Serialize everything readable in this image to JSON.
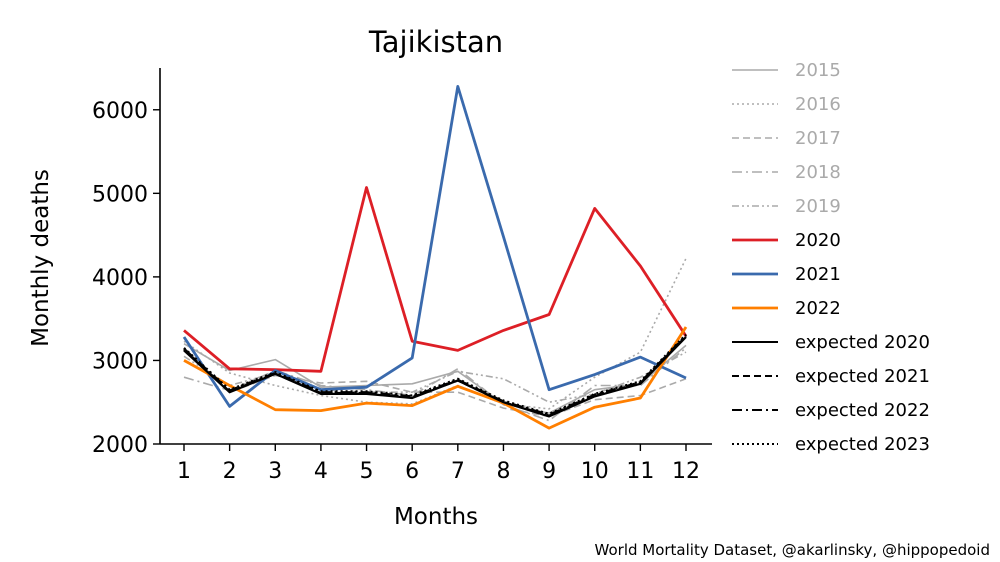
{
  "chart_data": {
    "type": "line",
    "title": "Tajikistan",
    "xlabel": "Months",
    "ylabel": "Monthly deaths",
    "x": [
      1,
      2,
      3,
      4,
      5,
      6,
      7,
      8,
      9,
      10,
      11,
      12
    ],
    "ylim": [
      2000,
      6500
    ],
    "yticks": [
      2000,
      3000,
      4000,
      5000,
      6000
    ],
    "grid": false,
    "legend_position": "outside-right",
    "series": [
      {
        "name": "2015",
        "color": "#aaaaaa",
        "dash": "solid",
        "values": [
          3200,
          2880,
          3010,
          2680,
          2700,
          2720,
          2870,
          2480,
          2370,
          2650,
          2720,
          3180
        ]
      },
      {
        "name": "2016",
        "color": "#aaaaaa",
        "dash": "dotted",
        "values": [
          3230,
          2850,
          2700,
          2580,
          2500,
          2480,
          2700,
          2480,
          2420,
          2800,
          3100,
          4220
        ]
      },
      {
        "name": "2017",
        "color": "#aaaaaa",
        "dash": "dashed",
        "values": [
          3150,
          2620,
          2820,
          2730,
          2750,
          2620,
          2620,
          2430,
          2330,
          2530,
          2580,
          2780
        ]
      },
      {
        "name": "2018",
        "color": "#aaaaaa",
        "dash": "dashdot",
        "values": [
          2800,
          2640,
          2880,
          2700,
          2650,
          2580,
          2900,
          2470,
          2280,
          2700,
          2700,
          3150
        ]
      },
      {
        "name": "2019",
        "color": "#aaaaaa",
        "dash": "dashdotdot",
        "values": [
          3050,
          2700,
          2850,
          2650,
          2620,
          2620,
          2870,
          2780,
          2500,
          2600,
          2800,
          3100
        ]
      },
      {
        "name": "2020",
        "color": "#dd1f26",
        "dash": "solid",
        "values": [
          3360,
          2900,
          2890,
          2870,
          5070,
          3230,
          3120,
          3360,
          3550,
          4820,
          4130,
          3290
        ]
      },
      {
        "name": "2021",
        "color": "#3a6aad",
        "dash": "solid",
        "values": [
          3280,
          2450,
          2880,
          2650,
          2680,
          3030,
          6280,
          4480,
          2650,
          2830,
          3040,
          2790
        ]
      },
      {
        "name": "2022",
        "color": "#ff7f00",
        "dash": "solid",
        "values": [
          3000,
          2700,
          2410,
          2400,
          2490,
          2460,
          2690,
          2490,
          2190,
          2440,
          2550,
          3400
        ]
      },
      {
        "name": "expected 2020",
        "color": "#000000",
        "dash": "solid",
        "values": [
          3120,
          2620,
          2840,
          2600,
          2600,
          2550,
          2760,
          2500,
          2330,
          2570,
          2720,
          3280
        ]
      },
      {
        "name": "expected 2021",
        "color": "#000000",
        "dash": "dashed",
        "values": [
          3130,
          2630,
          2840,
          2610,
          2610,
          2560,
          2760,
          2500,
          2340,
          2580,
          2730,
          3290
        ]
      },
      {
        "name": "expected 2022",
        "color": "#000000",
        "dash": "dashdot",
        "values": [
          3140,
          2640,
          2850,
          2620,
          2620,
          2570,
          2770,
          2510,
          2350,
          2590,
          2740,
          3300
        ]
      },
      {
        "name": "expected 2023",
        "color": "#000000",
        "dash": "dotted",
        "values": [
          3150,
          2650,
          2860,
          2630,
          2630,
          2580,
          2780,
          2520,
          2360,
          2600,
          2750,
          3310
        ]
      }
    ],
    "credit": "World Mortality Dataset, @akarlinsky, @hippopedoid"
  }
}
